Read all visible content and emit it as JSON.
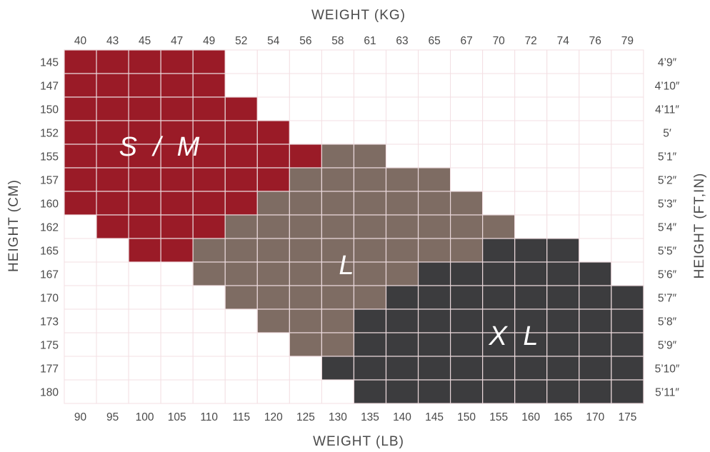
{
  "chart_data": {
    "type": "heatmap",
    "x_top_label": "WEIGHT (KG)",
    "x_bottom_label": "WEIGHT (LB)",
    "y_left_label": "HEIGHT (CM)",
    "y_right_label": "HEIGHT (FT,IN)",
    "weight_kg": [
      "40",
      "43",
      "45",
      "47",
      "49",
      "52",
      "54",
      "56",
      "58",
      "61",
      "63",
      "65",
      "67",
      "70",
      "72",
      "74",
      "76",
      "79"
    ],
    "weight_lb": [
      "90",
      "95",
      "100",
      "105",
      "110",
      "115",
      "120",
      "125",
      "130",
      "135",
      "140",
      "145",
      "150",
      "155",
      "160",
      "165",
      "170",
      "175"
    ],
    "height_cm": [
      "145",
      "147",
      "150",
      "152",
      "155",
      "157",
      "160",
      "162",
      "165",
      "167",
      "170",
      "173",
      "175",
      "177",
      "180"
    ],
    "height_ftin": [
      "4’9″",
      "4’10″",
      "4’11″",
      "5′",
      "5’1″",
      "5’2″",
      "5’3″",
      "5’4″",
      "5’5″",
      "5’6″",
      "5’7″",
      "5’8″",
      "5’9″",
      "5’10″",
      "5’11″"
    ],
    "sizes": [
      {
        "name": "S/M",
        "label": "S / M",
        "color": "#9a1b27"
      },
      {
        "name": "L",
        "label": "L",
        "color": "#7e6c63"
      },
      {
        "name": "XL",
        "label": "X L",
        "color": "#3c3c3e"
      }
    ],
    "grid_rows": [
      "SSSSS.............",
      "SSSSS.............",
      "SSSSSS............",
      "SSSSSSS...........",
      "SSSSSSSSLL........",
      "SSSSSSSLLLLL......",
      "SSSSSSLLLLLLL.....",
      ".SSSSLLLLLLLLL....",
      "..SSLLLLLLLLLXXX..",
      "....LLLLLLLXXXXXX.",
      ".....LLLLLXXXXXXXX",
      "......LLLXXXXXXXXX",
      ".......LLXXXXXXXXX",
      "........XXXXXXXXXX",
      ".........XXXXXXXXX"
    ],
    "empty_color": "#ffffff",
    "grid": true
  }
}
